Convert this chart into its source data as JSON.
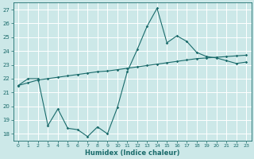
{
  "xlabel": "Humidex (Indice chaleur)",
  "background_color": "#cce8e8",
  "grid_color": "#ffffff",
  "line_color": "#1a6b6b",
  "xlim": [
    -0.5,
    23.5
  ],
  "ylim": [
    17.5,
    27.5
  ],
  "yticks": [
    18,
    19,
    20,
    21,
    22,
    23,
    24,
    25,
    26,
    27
  ],
  "xticks": [
    0,
    1,
    2,
    3,
    4,
    5,
    6,
    7,
    8,
    9,
    10,
    11,
    12,
    13,
    14,
    15,
    16,
    17,
    18,
    19,
    20,
    21,
    22,
    23
  ],
  "series1_x": [
    0,
    1,
    2,
    3,
    4,
    5,
    6,
    7,
    8,
    9,
    10,
    11,
    12,
    13,
    14,
    15,
    16,
    17,
    18,
    19,
    20,
    21,
    22,
    23
  ],
  "series1_y": [
    21.5,
    22.0,
    22.0,
    18.6,
    19.8,
    18.4,
    18.3,
    17.8,
    18.5,
    18.0,
    19.9,
    22.5,
    24.1,
    25.8,
    27.1,
    24.6,
    25.1,
    24.7,
    23.9,
    23.6,
    23.5,
    23.3,
    23.1,
    23.2
  ],
  "series2_x": [
    0,
    1,
    2,
    3,
    4,
    5,
    6,
    7,
    8,
    9,
    10,
    11,
    12,
    13,
    14,
    15,
    16,
    17,
    18,
    19,
    20,
    21,
    22,
    23
  ],
  "series2_y": [
    21.5,
    21.7,
    21.9,
    22.0,
    22.1,
    22.2,
    22.3,
    22.4,
    22.5,
    22.55,
    22.65,
    22.75,
    22.85,
    22.95,
    23.05,
    23.15,
    23.25,
    23.35,
    23.45,
    23.5,
    23.55,
    23.6,
    23.65,
    23.7
  ]
}
